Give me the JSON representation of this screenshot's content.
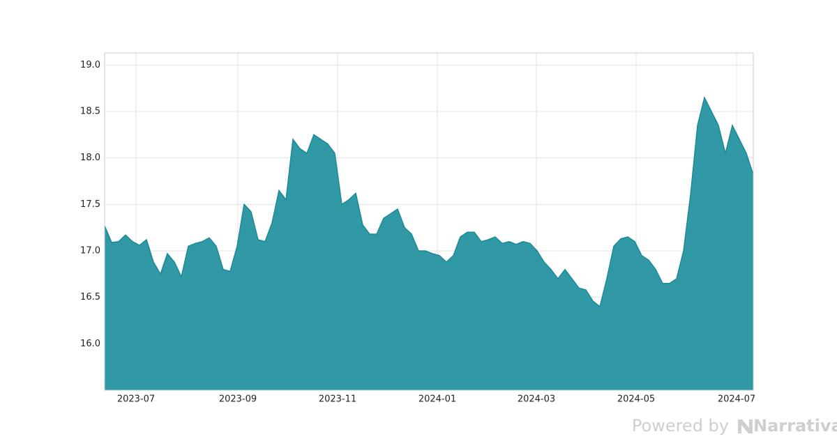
{
  "chart_data": {
    "type": "area",
    "values": [
      17.27,
      17.09,
      17.1,
      17.17,
      17.1,
      17.06,
      17.12,
      16.88,
      16.75,
      16.97,
      16.88,
      16.72,
      17.05,
      17.08,
      17.1,
      17.14,
      17.05,
      16.8,
      16.78,
      17.05,
      17.5,
      17.42,
      17.12,
      17.1,
      17.3,
      17.65,
      17.55,
      18.2,
      18.1,
      18.05,
      18.25,
      18.2,
      18.15,
      18.05,
      17.5,
      17.55,
      17.62,
      17.28,
      17.18,
      17.18,
      17.35,
      17.4,
      17.45,
      17.25,
      17.18,
      17.0,
      17.0,
      16.97,
      16.95,
      16.88,
      16.95,
      17.15,
      17.2,
      17.2,
      17.1,
      17.12,
      17.15,
      17.08,
      17.1,
      17.07,
      17.1,
      17.08,
      17.0,
      16.88,
      16.8,
      16.7,
      16.8,
      16.7,
      16.6,
      16.58,
      16.46,
      16.4,
      16.7,
      17.05,
      17.13,
      17.15,
      17.1,
      16.95,
      16.9,
      16.8,
      16.65,
      16.65,
      16.7,
      17.0,
      17.6,
      18.35,
      18.65,
      18.5,
      18.35,
      18.05,
      18.35,
      18.2,
      18.05,
      17.82
    ],
    "color": "#1b8a96",
    "fill": "#3199a6",
    "xlim": [
      0,
      93
    ],
    "xticks": [
      {
        "value": 4.5,
        "label": "2023-07"
      },
      {
        "value": 19.1,
        "label": "2023-09"
      },
      {
        "value": 33.4,
        "label": "2023-11"
      },
      {
        "value": 47.7,
        "label": "2024-01"
      },
      {
        "value": 61.9,
        "label": "2024-03"
      },
      {
        "value": 76.2,
        "label": "2024-05"
      },
      {
        "value": 90.6,
        "label": "2024-07"
      }
    ],
    "ylim": [
      15.5,
      19.13
    ],
    "yticks": [
      {
        "value": 16,
        "label": "16.0"
      },
      16.5,
      {
        "value": 17,
        "label": "17.0"
      },
      17.5,
      {
        "value": 18,
        "label": "18.0"
      },
      18.5,
      {
        "value": 19,
        "label": "19.0"
      }
    ],
    "grid": true
  },
  "footer": {
    "text": "Powered by",
    "brand": "Narrativa"
  }
}
